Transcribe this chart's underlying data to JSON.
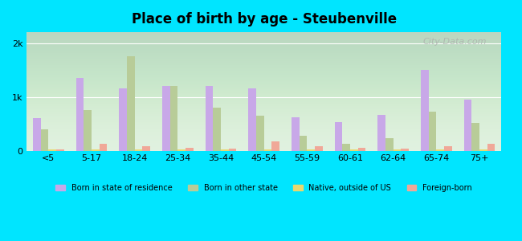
{
  "title": "Place of birth by age - Steubenville",
  "categories": [
    "<5",
    "5-17",
    "18-24",
    "25-34",
    "35-44",
    "45-54",
    "55-59",
    "60-61",
    "62-64",
    "65-74",
    "75+"
  ],
  "series": {
    "Born in state of residence": [
      600,
      1350,
      1150,
      1200,
      1200,
      1150,
      620,
      530,
      670,
      1500,
      950
    ],
    "Born in other state": [
      390,
      750,
      1750,
      1200,
      800,
      650,
      280,
      130,
      230,
      730,
      520
    ],
    "Native, outside of US": [
      30,
      20,
      30,
      30,
      30,
      20,
      20,
      30,
      20,
      30,
      20
    ],
    "Foreign-born": [
      30,
      120,
      90,
      60,
      40,
      170,
      80,
      60,
      40,
      80,
      120
    ]
  },
  "colors": {
    "Born in state of residence": "#c8a8e8",
    "Born in other state": "#b8cc98",
    "Native, outside of US": "#e8d870",
    "Foreign-born": "#f0a898"
  },
  "ylim": [
    0,
    2200
  ],
  "yticks": [
    0,
    1000,
    2000
  ],
  "ytick_labels": [
    "0",
    "1k",
    "2k"
  ],
  "background_top": "#e8f4e8",
  "background_bottom": "#f0f8e8",
  "outer_background": "#00e5ff",
  "bar_width": 0.18,
  "legend_labels": [
    "Born in state of residence",
    "Born in other state",
    "Native, outside of US",
    "Foreign-born"
  ]
}
